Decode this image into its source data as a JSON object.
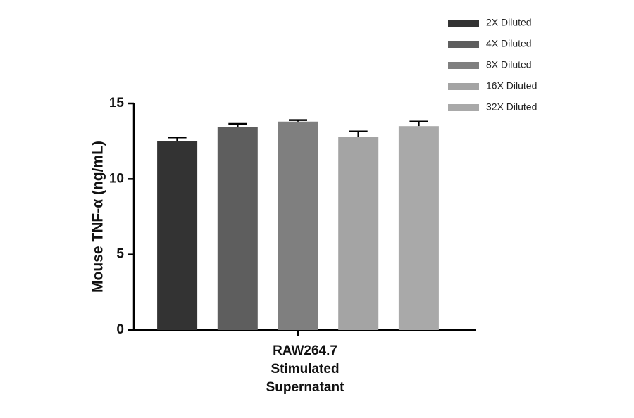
{
  "chart_data": {
    "type": "bar",
    "y_label": "Mouse TNF-α (ng/mL)",
    "categories": [
      "RAW264.7\nStimulated\nSupernatant"
    ],
    "series": [
      {
        "name": "2X Diluted",
        "color": "#333333",
        "values": [
          12.5
        ],
        "errors": [
          0.25
        ]
      },
      {
        "name": "4X Diluted",
        "color": "#5e5e5e",
        "values": [
          13.45
        ],
        "errors": [
          0.2
        ]
      },
      {
        "name": "8X Diluted",
        "color": "#7f7f7f",
        "values": [
          13.8
        ],
        "errors": [
          0.1
        ]
      },
      {
        "name": "16X Diluted",
        "color": "#a4a4a4",
        "values": [
          12.8
        ],
        "errors": [
          0.35
        ]
      },
      {
        "name": "32X Diluted",
        "color": "#a9a9a9",
        "values": [
          13.5
        ],
        "errors": [
          0.3
        ]
      }
    ],
    "ylim": [
      0,
      15
    ],
    "yticks": [
      0,
      5,
      10,
      15
    ],
    "legend": "upper-right"
  }
}
